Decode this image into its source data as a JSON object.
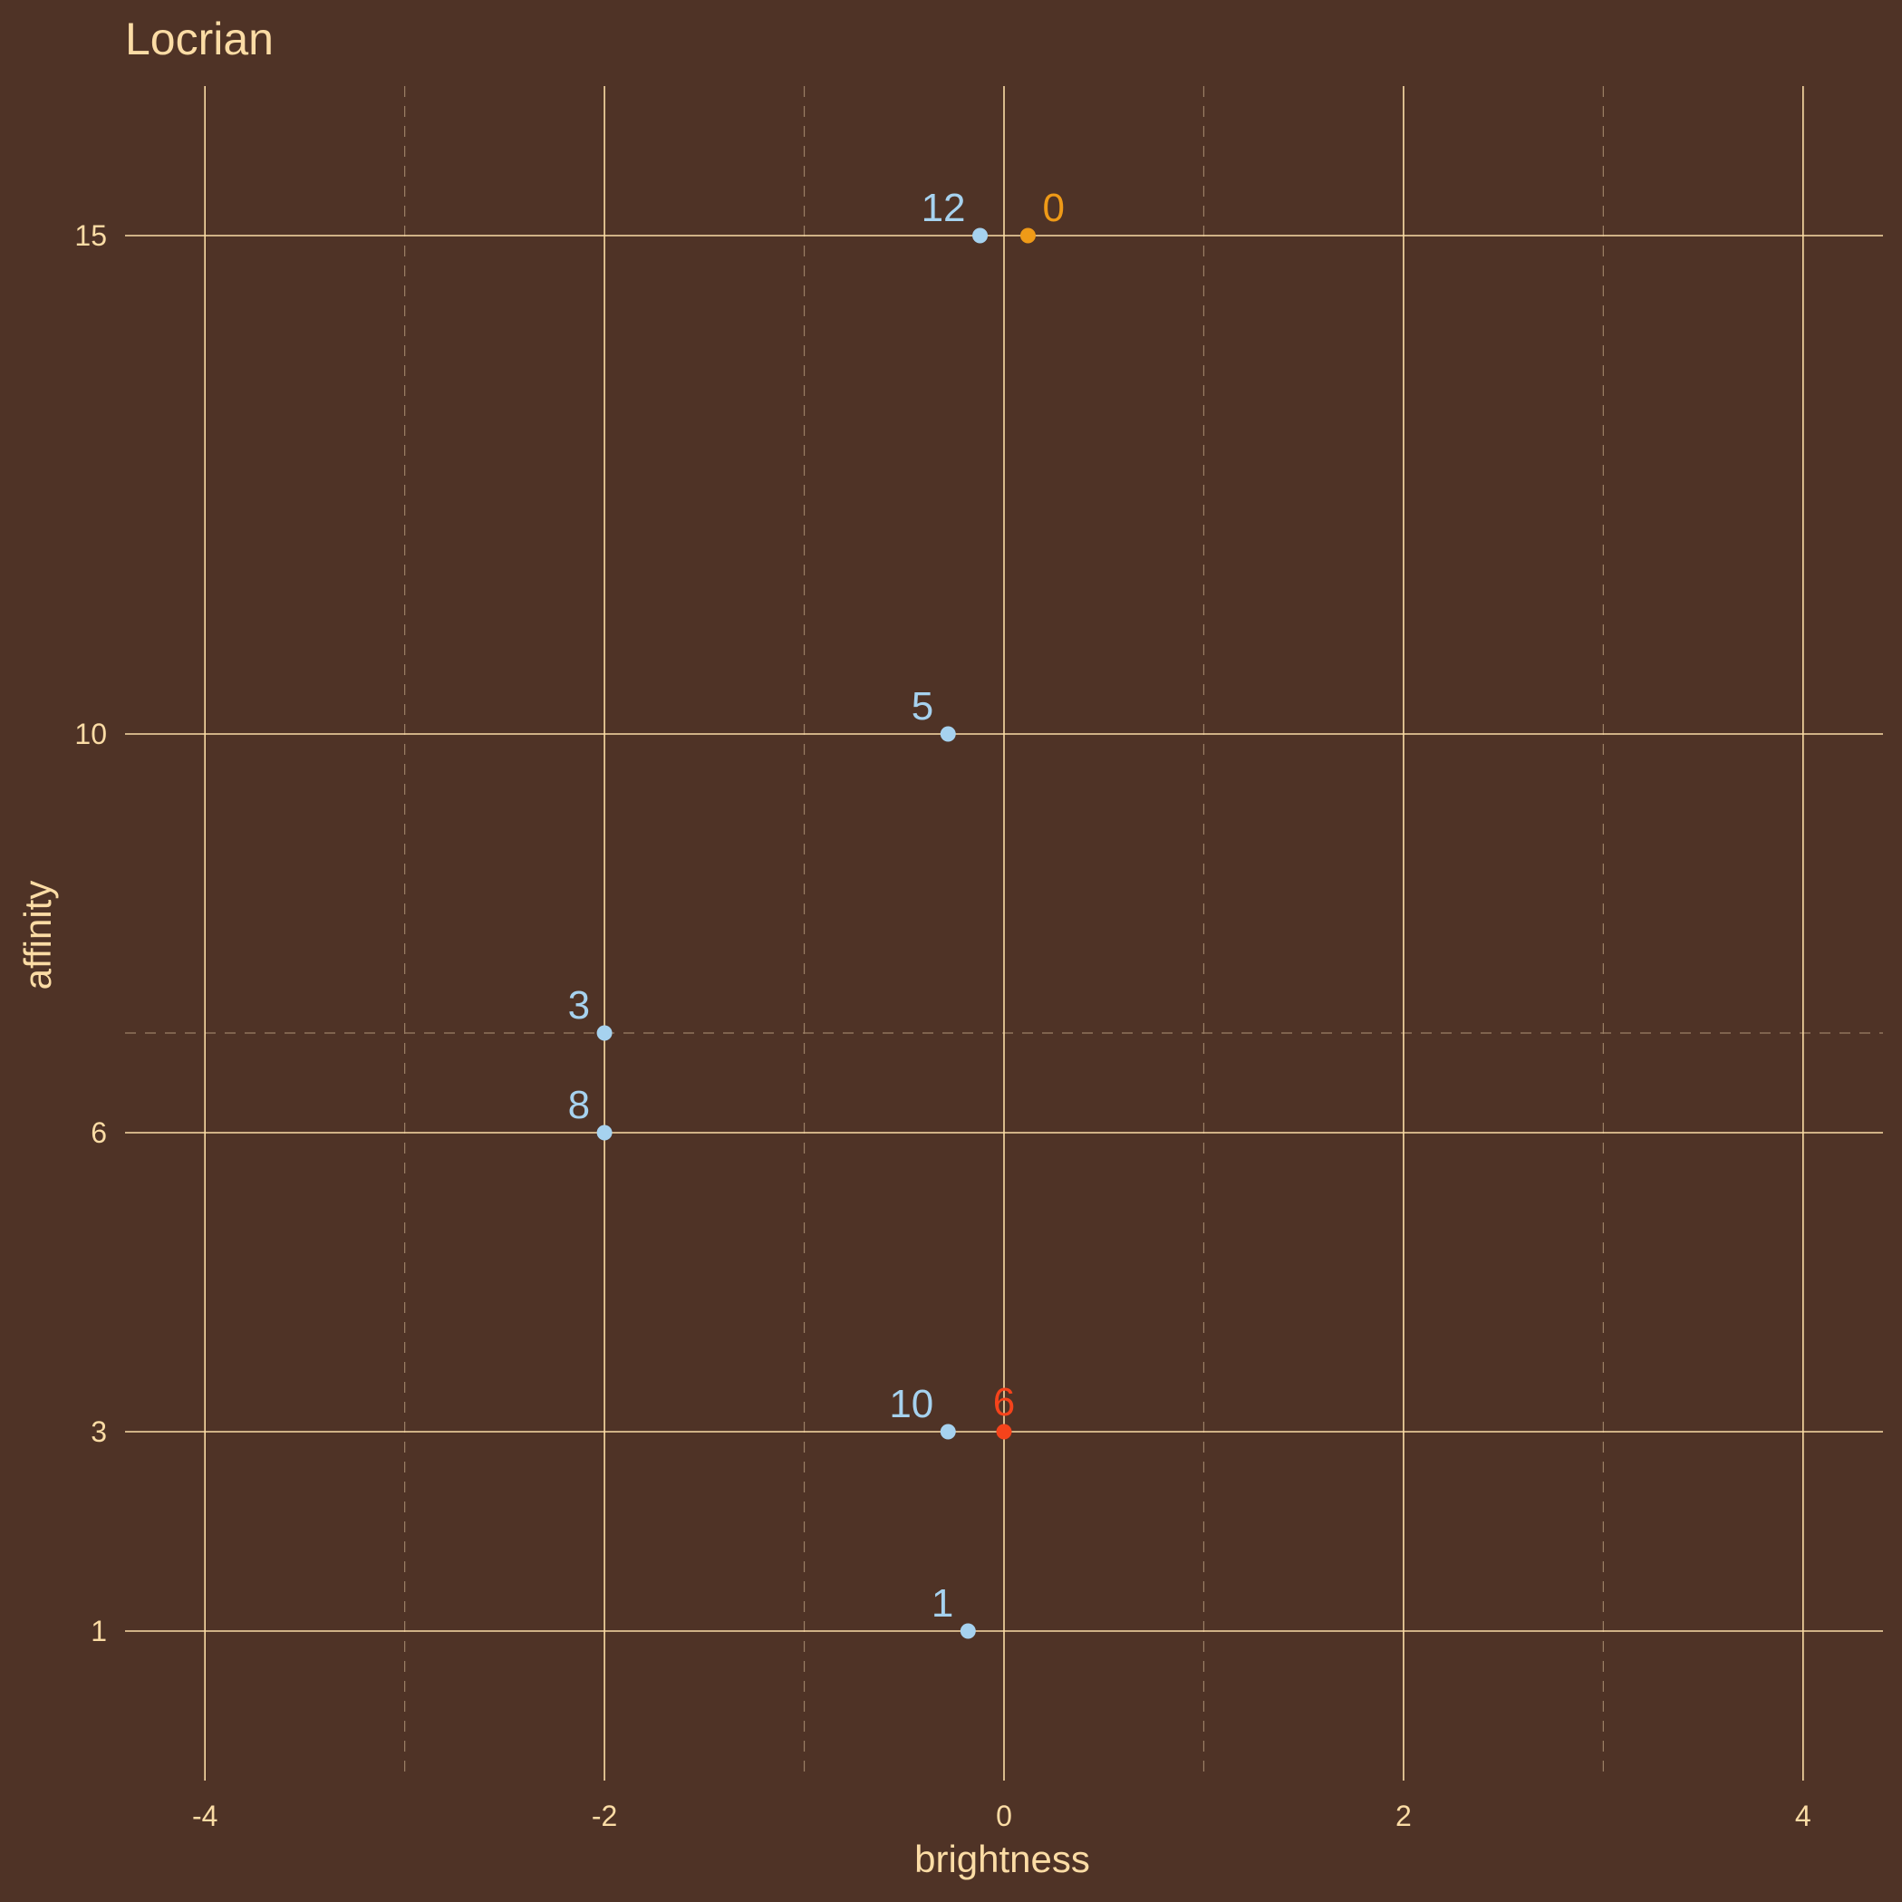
{
  "chart_data": {
    "type": "scatter",
    "title": "Locrian",
    "xlabel": "brightness",
    "ylabel": "affinity",
    "xlim": [
      -4.4,
      4.4
    ],
    "ylim": [
      -0.5,
      16.5
    ],
    "x_ticks": [
      -4,
      -2,
      0,
      2,
      4
    ],
    "x_tick_labels": [
      "-4",
      "-2",
      "0",
      "2",
      "4"
    ],
    "y_ticks": [
      1,
      3,
      6,
      10,
      15
    ],
    "y_tick_labels": [
      "1",
      "3",
      "6",
      "10",
      "15"
    ],
    "x_minor_dashed": [
      -3,
      -1,
      1,
      3
    ],
    "y_minor_dashed": [
      7
    ],
    "grid": true,
    "legend": "none",
    "points": [
      {
        "label": "0",
        "x": 0.12,
        "y": 15,
        "color": "#ef9a17"
      },
      {
        "label": "12",
        "x": -0.12,
        "y": 15,
        "color": "#a6d2ef"
      },
      {
        "label": "5",
        "x": -0.28,
        "y": 10,
        "color": "#a6d2ef"
      },
      {
        "label": "3",
        "x": -2.0,
        "y": 7,
        "color": "#a6d2ef"
      },
      {
        "label": "8",
        "x": -2.0,
        "y": 6,
        "color": "#a6d2ef"
      },
      {
        "label": "10",
        "x": -0.28,
        "y": 3,
        "color": "#a6d2ef"
      },
      {
        "label": "6",
        "x": 0.0,
        "y": 3,
        "color": "#f5431b"
      },
      {
        "label": "1",
        "x": -0.18,
        "y": 1,
        "color": "#a6d2ef"
      }
    ]
  },
  "colors": {
    "background": "#4f3326",
    "grid": "#fbdca5",
    "text": "#fbdca5"
  }
}
